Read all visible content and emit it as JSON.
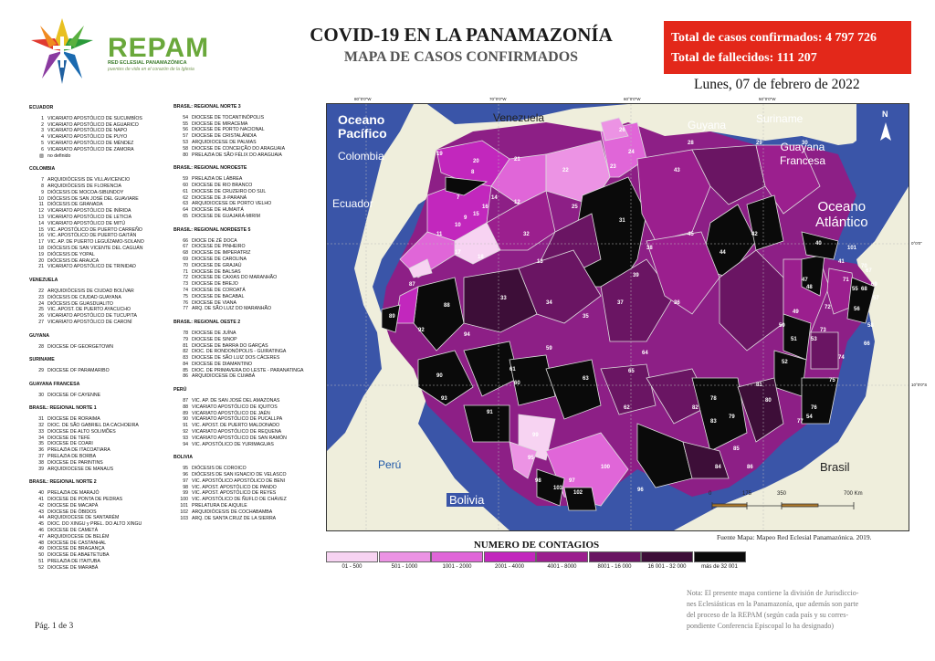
{
  "header": {
    "logo_name": "REPAM",
    "logo_sub": "RED ECLESIAL PANAMAZÓNICA",
    "logo_tagline": "puentes de vida en el corazón de la Iglesia",
    "title": "COVID-19 EN LA PANAMAZONÍA",
    "subtitle": "MAPA DE CASOS CONFIRMADOS",
    "total_cases": "Total de casos confirmados: 4 797 726",
    "total_deaths": "Total de fallecidos: 111 207",
    "date": "Lunes, 07 de febrero de 2022"
  },
  "colors": {
    "accent_red": "#e3281a",
    "logo_green": "#6aa83b",
    "ocean": "#3a55a8",
    "land_outside": "#efeedc"
  },
  "left_column": [
    {
      "section": "ECUADOR",
      "items": [
        {
          "n": "1",
          "name": "VICARIATO APOSTÓLICO DE SUCUMBÍOS"
        },
        {
          "n": "2",
          "name": "VICARIATO APOSTÓLICO DE AGUARICO"
        },
        {
          "n": "3",
          "name": "VICARIATO APOSTÓLICO DE NAPO"
        },
        {
          "n": "4",
          "name": "VICARIATO APOSTÓLICO DE PUYO"
        },
        {
          "n": "5",
          "name": "VICARIATO APOSTÓLICO DE MÉNDEZ"
        },
        {
          "n": "6",
          "name": "VICARIATO APOSTÓLICO DE ZAMORA"
        },
        {
          "n": "▨",
          "name": "no definido"
        }
      ]
    },
    {
      "section": "COLOMBIA",
      "items": [
        {
          "n": "7",
          "name": "ARQUIDIÓCESIS DE VILLAVICENCIO"
        },
        {
          "n": "8",
          "name": "ARQUIDIÓCESIS DE FLORENCIA"
        },
        {
          "n": "9",
          "name": "DIÓCESIS DE MOCOA-SIBUNDOY"
        },
        {
          "n": "10",
          "name": "DIÓCESIS DE SAN JOSÉ DEL GUAVIARE"
        },
        {
          "n": "11",
          "name": "DIÓCESIS DE GRANADA"
        },
        {
          "n": "12",
          "name": "VICARIATO APOSTÓLICO DE INÍRIDA"
        },
        {
          "n": "13",
          "name": "VICARIATO APOSTÓLICO DE LETICIA"
        },
        {
          "n": "14",
          "name": "VICARIATO APOSTÓLICO DE MITÚ"
        },
        {
          "n": "15",
          "name": "VIC. APOSTÓLICO DE PUERTO CARREÑO"
        },
        {
          "n": "16",
          "name": "VIC. APOSTÓLICO DE PUERTO GAITÁN"
        },
        {
          "n": "17",
          "name": "VIC. AP. DE PUERTO LEGUÍZAMO-SOLANO"
        },
        {
          "n": "18",
          "name": "DIÓCESIS DE SAN VICENTE DEL CAGUÁN"
        },
        {
          "n": "19",
          "name": "DIÓCESIS DE YOPAL"
        },
        {
          "n": "20",
          "name": "DIÓCESIS DE ARAUCA"
        },
        {
          "n": "21",
          "name": "VICARIATO APOSTÓLICO DE TRINIDAD"
        }
      ]
    },
    {
      "section": "VENEZUELA",
      "items": [
        {
          "n": "22",
          "name": "ARQUIDIÓCESIS DE CIUDAD BOLÍVAR"
        },
        {
          "n": "23",
          "name": "DIÓCESIS DE CIUDAD GUAYANA"
        },
        {
          "n": "24",
          "name": "DIÓCESIS DE GUASDUALITO"
        },
        {
          "n": "25",
          "name": "VIC. APOST. DE PUERTO AYACUCHO"
        },
        {
          "n": "26",
          "name": "VICARIATO APOSTÓLICO DE TUCUPITA"
        },
        {
          "n": "27",
          "name": "VICARIATO APOSTÓLICO DE CARONÍ"
        }
      ]
    },
    {
      "section": "GUYANA",
      "items": [
        {
          "n": "28",
          "name": "DIOCESE OF GEORGETOWN"
        }
      ]
    },
    {
      "section": "SURINAME",
      "items": [
        {
          "n": "29",
          "name": "DIOCESE OF PARAMARIBO"
        }
      ]
    },
    {
      "section": "GUAYANA FRANCESA",
      "items": [
        {
          "n": "30",
          "name": "DIOCESE OF CAYENNE"
        }
      ]
    },
    {
      "section": "BRASIL: REGIONAL NORTE 1",
      "items": [
        {
          "n": "31",
          "name": "DIOCESE DE RORAIMA"
        },
        {
          "n": "32",
          "name": "DIOC. DE SÃO GABRIEL DA CACHOEIRA"
        },
        {
          "n": "33",
          "name": "DIOCESE DE ALTO SOLIMÕES"
        },
        {
          "n": "34",
          "name": "DIOCESE DE TEFÉ"
        },
        {
          "n": "35",
          "name": "DIOCESE DE COARI"
        },
        {
          "n": "36",
          "name": "PRELAZIA DE ITACOATIARA"
        },
        {
          "n": "37",
          "name": "PRELAZIA DE BORBA"
        },
        {
          "n": "38",
          "name": "DIOCESE DE PARINTINS"
        },
        {
          "n": "39",
          "name": "ARQUIDIOCESE DE MANAUS"
        }
      ]
    },
    {
      "section": "BRASIL: REGIONAL NORTE 2",
      "items": [
        {
          "n": "40",
          "name": "PRELAZIA DE MARAJÓ"
        },
        {
          "n": "41",
          "name": "DIOCESE DE PONTA DE PEDRAS"
        },
        {
          "n": "42",
          "name": "DIOCESE DE MACAPÁ"
        },
        {
          "n": "43",
          "name": "DIOCESE DE ÓBIDOS"
        },
        {
          "n": "44",
          "name": "ARQUIDIOCESE DE SANTARÉM"
        },
        {
          "n": "45",
          "name": "DIOC. DO XINGU y PREL. DO ALTO XINGU"
        },
        {
          "n": "46",
          "name": "DIOCESE DE CAMETÁ"
        },
        {
          "n": "47",
          "name": "ARQUIDIOCESE DE BELÉM"
        },
        {
          "n": "48",
          "name": "DIOCESE DE CASTANHAL"
        },
        {
          "n": "49",
          "name": "DIOCESE DE BRAGANÇA"
        },
        {
          "n": "50",
          "name": "DIOCESE DE ABAETETUBA"
        },
        {
          "n": "51",
          "name": "PRELAZIA DE ITAITUBA"
        },
        {
          "n": "52",
          "name": "DIOCESE DE MARABÁ"
        }
      ]
    }
  ],
  "right_column": [
    {
      "section": "BRASIL: REGIONAL NORTE 3",
      "items": [
        {
          "n": "54",
          "name": "DIOCESE DE TOCANTINÓPOLIS"
        },
        {
          "n": "55",
          "name": "DIOCESE DE MIRACEMA"
        },
        {
          "n": "56",
          "name": "DIOCESE DE PORTO NACIONAL"
        },
        {
          "n": "57",
          "name": "DIOCESE DE CRISTALÂNDIA"
        },
        {
          "n": "53",
          "name": "ARQUIDIOCESE DE PALMAS"
        },
        {
          "n": "58",
          "name": "DIOCESE DE CONCEIÇÃO DO ARAGUAIA"
        },
        {
          "n": "80",
          "name": "PRELAZIA DE SÃO FÉLIX DO ARAGUAIA"
        }
      ]
    },
    {
      "section": "BRASIL: REGIONAL NOROESTE",
      "items": [
        {
          "n": "59",
          "name": "PRELAZIA DE LÁBREA"
        },
        {
          "n": "60",
          "name": "DIOCESE DE RIO BRANCO"
        },
        {
          "n": "61",
          "name": "DIOCESE DE CRUZEIRO DO SUL"
        },
        {
          "n": "62",
          "name": "DIOCESE DE JI-PARANÁ"
        },
        {
          "n": "63",
          "name": "ARQUIDIOCESE DE PORTO VELHO"
        },
        {
          "n": "64",
          "name": "DIOCESE DE HUMAITÁ"
        },
        {
          "n": "65",
          "name": "DIOCESE DE GUAJARÁ-MIRIM"
        }
      ]
    },
    {
      "section": "BRASIL: REGIONAL NORDESTE 5",
      "items": [
        {
          "n": "66",
          "name": "DIOCE DE ZÉ DOCA"
        },
        {
          "n": "67",
          "name": "DIOCESE DE PINHEIRO"
        },
        {
          "n": "68",
          "name": "DIOCESE DE IMPERATRIZ"
        },
        {
          "n": "69",
          "name": "DIOCESE DE CAROLINA"
        },
        {
          "n": "70",
          "name": "DIOCESE DE GRAJAÚ"
        },
        {
          "n": "71",
          "name": "DIOCESE DE BALSAS"
        },
        {
          "n": "72",
          "name": "DIOCESE DE CAXIAS DO MARANHÃO"
        },
        {
          "n": "73",
          "name": "DIOCESE DE BREJO"
        },
        {
          "n": "74",
          "name": "DIOCESE DE COROATÁ"
        },
        {
          "n": "75",
          "name": "DIOCESE DE BACABAL"
        },
        {
          "n": "76",
          "name": "DIOCESE DE VIANA"
        },
        {
          "n": "77",
          "name": "ARQ. DE SÃO LUIZ DO MARANHÃO"
        }
      ]
    },
    {
      "section": "BRASIL: REGIONAL OESTE 2",
      "items": [
        {
          "n": "78",
          "name": "DIOCESE DE JUÍNA"
        },
        {
          "n": "79",
          "name": "DIOCESE DE SINOP"
        },
        {
          "n": "81",
          "name": "DIOCESE DE BARRA DO GARÇAS"
        },
        {
          "n": "82",
          "name": "DIOC. DE RONDONÓPOLIS - GUIRATINGA"
        },
        {
          "n": "83",
          "name": "DIOCESE DE SÃO LUIZ DOS CÁCERES"
        },
        {
          "n": "84",
          "name": "DIOCESE DE DIAMANTINO"
        },
        {
          "n": "85",
          "name": "DIOC. DE PRIMAVERA DO LESTE - PARANATINGA"
        },
        {
          "n": "86",
          "name": "ARQUIDIOCESE DE CUIABÁ"
        }
      ]
    },
    {
      "section": "PERÚ",
      "items": [
        {
          "n": "87",
          "name": "VIC. AP. DE SAN JOSÉ DEL AMAZONAS"
        },
        {
          "n": "88",
          "name": "VICARIATO APOSTÓLICO DE IQUITOS"
        },
        {
          "n": "89",
          "name": "VICARIATO APOSTÓLICO DE JAÉN"
        },
        {
          "n": "90",
          "name": "VICARIATO APOSTÓLICO DE PUCALLPA"
        },
        {
          "n": "91",
          "name": "VIC. APOST. DE PUERTO MALDONADO"
        },
        {
          "n": "92",
          "name": "VICARIATO APOSTÓLICO DE REQUENA"
        },
        {
          "n": "93",
          "name": "VICARIATO APOSTÓLICO DE SAN RAMÓN"
        },
        {
          "n": "94",
          "name": "VIC. APOSTÓLICO DE YURIMAGUAS"
        }
      ]
    },
    {
      "section": "BOLIVIA",
      "items": [
        {
          "n": "95",
          "name": "DIÓCESIS DE COROICO"
        },
        {
          "n": "96",
          "name": "DIÓCESIS DE SAN IGNACIO DE VELASCO"
        },
        {
          "n": "97",
          "name": "VIC. APOSTÓLICO APOSTÓLICO DE BENI"
        },
        {
          "n": "98",
          "name": "VIC. APOST. APOSTÓLICO DE PANDO"
        },
        {
          "n": "99",
          "name": "VIC. APOST. APOSTÓLICO DE REYES"
        },
        {
          "n": "100",
          "name": "VIC. APOSTÓLICO DE ÑUFLO DE CHÁVEZ"
        },
        {
          "n": "101",
          "name": "PRELATURA DE AIQUILE"
        },
        {
          "n": "102",
          "name": "ARQUIDIÓCESIS DE COCHABAMBA"
        },
        {
          "n": "103",
          "name": "ARQ. DE SANTA CRUZ DE LA SIERRA"
        }
      ]
    }
  ],
  "footer": {
    "page": "Pág. 1 de 3"
  },
  "map": {
    "labels": {
      "pacific": "Oceano Pacífico",
      "pacific_l1": "Oceano",
      "pacific_l2": "Pacífico",
      "atlantic_l1": "Oceano",
      "atlantic_l2": "Atlántico",
      "colombia": "Colombia",
      "venezuela": "Venezuela",
      "guyana": "Guyana",
      "suriname": "Suriname",
      "guayana_l1": "Guayana",
      "guayana_l2": "Francesa",
      "ecuador": "Ecuador",
      "peru": "Perú",
      "bolivia": "Bolivia",
      "brasil": "Brasil",
      "north": "N"
    },
    "graticule": [
      "80°0'0\"W",
      "70°0'0\"W",
      "60°0'0\"W",
      "50°0'0\"W",
      "0°0'0\"",
      "10°0'0\"S"
    ],
    "scale": [
      "0",
      "175",
      "350",
      "700 Km"
    ],
    "source": "Fuente Mapa: Mapeo Red Eclesial Panamazónica. 2019.",
    "region_numbers": [
      "19",
      "20",
      "21",
      "26",
      "22",
      "23",
      "24",
      "25",
      "12",
      "8",
      "16",
      "14",
      "15",
      "9",
      "10",
      "11",
      "7",
      "17",
      "18",
      "13",
      "31",
      "32",
      "28",
      "29",
      "30",
      "43",
      "42",
      "44",
      "45",
      "39",
      "38",
      "36",
      "37",
      "35",
      "34",
      "33",
      "88",
      "87",
      "89",
      "92",
      "94",
      "90",
      "93",
      "91",
      "61",
      "60",
      "59",
      "63",
      "62",
      "64",
      "65",
      "99",
      "95",
      "98",
      "97",
      "100",
      "96",
      "103",
      "102",
      "101",
      "41",
      "40",
      "47",
      "48",
      "49",
      "50",
      "51",
      "52",
      "53",
      "54",
      "55",
      "56",
      "57",
      "58",
      "66",
      "67",
      "68",
      "69",
      "70",
      "71",
      "72",
      "73",
      "74",
      "75",
      "76",
      "77",
      "78",
      "79",
      "80",
      "81",
      "82",
      "83",
      "84",
      "85",
      "86"
    ]
  },
  "legend": {
    "title": "NUMERO DE CONTAGIOS",
    "bins": [
      {
        "label": "01 - 500",
        "color": "#f7d3f2"
      },
      {
        "label": "501 - 1000",
        "color": "#ec93e4"
      },
      {
        "label": "1001 - 2000",
        "color": "#e066d8"
      },
      {
        "label": "2001 - 4000",
        "color": "#c227bd"
      },
      {
        "label": "4001 - 8000",
        "color": "#9b1f8e"
      },
      {
        "label": "8001 - 16 000",
        "color": "#6a1563"
      },
      {
        "label": "16 001 - 32 000",
        "color": "#3d0e38"
      },
      {
        "label": "más de 32 001",
        "color": "#0a0a0a"
      }
    ]
  },
  "note": "Nota: El presente mapa contiene la división de Jurisdicciones Eclesiásticas en la Panamazonía, que además son parte del proceso de la REPAM  (según cada país y su correspondiente Conferencia Episcopal lo ha designado)",
  "note_lines": [
    "Nota: El presente mapa contiene la división de Jurisdiccio-",
    "nes Eclesiásticas en la Panamazonía, que además son parte",
    "del proceso de la REPAM  (según cada país y su corres-",
    "pondiente Conferencia Episcopal lo ha designado)"
  ]
}
